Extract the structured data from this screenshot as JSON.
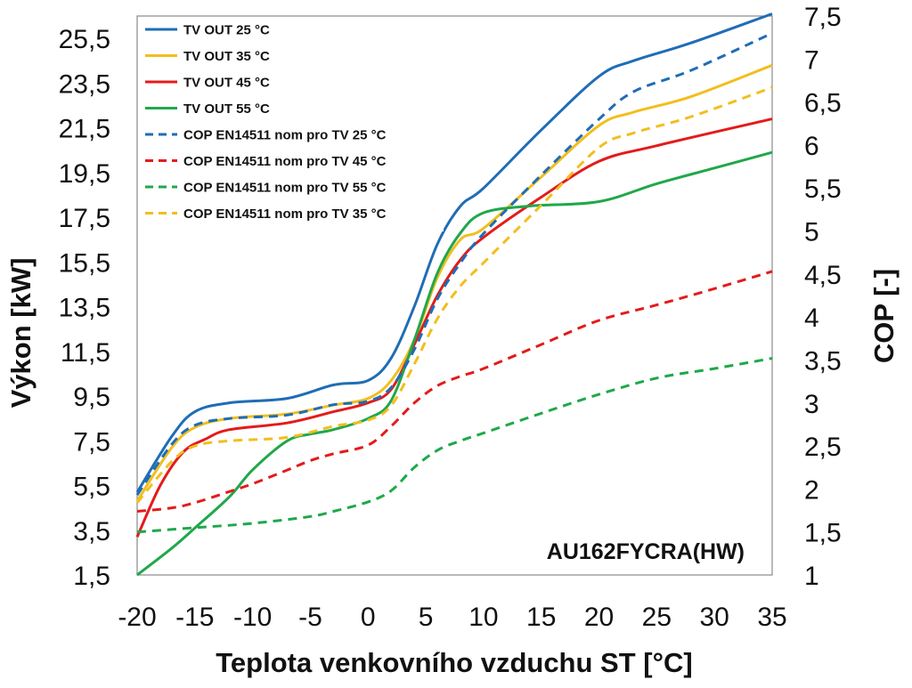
{
  "chart_data": {
    "type": "line",
    "xlabel": "Teplota venkovního vzduchu ST [°C]",
    "ylabel_left": "Výkon [kW]",
    "ylabel_right": "COP [-]",
    "annotation": "AU162FYCRA(HW)",
    "x_ticks": [
      "-20",
      "-15",
      "-10",
      "-5",
      "0",
      "5",
      "10",
      "15",
      "20",
      "25",
      "30",
      "35"
    ],
    "y_left_ticks": [
      "1,5",
      "3,5",
      "5,5",
      "7,5",
      "9,5",
      "11,5",
      "13,5",
      "15,5",
      "17,5",
      "19,5",
      "21,5",
      "23,5",
      "25,5"
    ],
    "y_right_ticks": [
      "1",
      "1,5",
      "2",
      "2,5",
      "3",
      "3,5",
      "4",
      "4,5",
      "5",
      "5,5",
      "6",
      "6,5",
      "7",
      "7,5"
    ],
    "xlim": [
      -20,
      35
    ],
    "ylim_left": [
      1.5,
      26.5
    ],
    "ylim_right": [
      1,
      7.5
    ],
    "grid": false,
    "legend_position": "top-left",
    "series": [
      {
        "name": "TV OUT 25 °C",
        "axis": "left",
        "style": "solid",
        "color": "#1f6db5",
        "x": [
          -20,
          -17,
          -15,
          -12,
          -7,
          -3,
          0,
          2,
          4,
          6,
          8,
          10,
          15,
          20,
          23,
          28,
          35
        ],
        "y": [
          5.2,
          7.7,
          8.8,
          9.2,
          9.4,
          10.0,
          10.2,
          11.2,
          13.5,
          16.3,
          18.0,
          18.8,
          21.4,
          23.8,
          24.5,
          25.3,
          26.6
        ]
      },
      {
        "name": "TV OUT 35 °C",
        "axis": "left",
        "style": "solid",
        "color": "#f2be1e",
        "x": [
          -20,
          -17,
          -15,
          -12,
          -7,
          -3,
          0,
          2,
          4,
          6,
          8,
          10,
          15,
          20,
          23,
          28,
          35
        ],
        "y": [
          4.8,
          7.2,
          8.1,
          8.5,
          8.7,
          9.1,
          9.4,
          10.2,
          12.0,
          14.8,
          16.5,
          17.0,
          19.3,
          21.6,
          22.2,
          22.9,
          24.3
        ]
      },
      {
        "name": "TV OUT 45 °C",
        "axis": "left",
        "style": "solid",
        "color": "#e31b1b",
        "x": [
          -20,
          -18,
          -16,
          -14,
          -12,
          -7,
          -3,
          0,
          2,
          4,
          6,
          8,
          10,
          15,
          20,
          25,
          35
        ],
        "y": [
          3.2,
          5.5,
          7.0,
          7.6,
          8.0,
          8.3,
          8.8,
          9.2,
          9.8,
          11.8,
          14.0,
          15.6,
          16.6,
          18.4,
          20.0,
          20.7,
          21.9
        ]
      },
      {
        "name": "TV OUT 55 °C",
        "axis": "left",
        "style": "solid",
        "color": "#1fa84a",
        "x": [
          -20,
          -17,
          -15,
          -12,
          -10,
          -7,
          -5,
          -3,
          0,
          2,
          4,
          6,
          8,
          10,
          14,
          20,
          25,
          30,
          35
        ],
        "y": [
          1.5,
          2.7,
          3.6,
          5.0,
          6.2,
          7.5,
          7.8,
          8.0,
          8.5,
          9.3,
          12.0,
          15.0,
          16.8,
          17.7,
          18.0,
          18.2,
          19.0,
          19.7,
          20.4
        ]
      },
      {
        "name": "COP EN14511 nom pro TV 25 °C",
        "axis": "right",
        "style": "dashed",
        "color": "#1f6db5",
        "x": [
          -20,
          -17,
          -15,
          -12,
          -7,
          -3,
          0,
          2,
          4,
          6,
          8,
          10,
          15,
          20,
          23,
          28,
          35
        ],
        "y": [
          1.93,
          2.52,
          2.74,
          2.82,
          2.86,
          2.98,
          3.02,
          3.18,
          3.62,
          4.21,
          4.63,
          4.97,
          5.65,
          6.3,
          6.62,
          6.87,
          7.3
        ]
      },
      {
        "name": "COP EN14511 nom pro TV 45 °C",
        "axis": "right",
        "style": "dashed",
        "color": "#e31b1b",
        "x": [
          -20,
          -17,
          -15,
          -12,
          -10,
          -7,
          -5,
          -3,
          0,
          2,
          4,
          6,
          8,
          10,
          15,
          20,
          25,
          30,
          35
        ],
        "y": [
          1.74,
          1.78,
          1.84,
          1.97,
          2.06,
          2.22,
          2.33,
          2.41,
          2.51,
          2.73,
          3.0,
          3.2,
          3.31,
          3.4,
          3.68,
          3.96,
          4.14,
          4.33,
          4.53
        ]
      },
      {
        "name": "COP EN14511 nom pro TV 55 °C",
        "axis": "right",
        "style": "dashed",
        "color": "#1fa84a",
        "x": [
          -20,
          -15,
          -10,
          -5,
          -3,
          0,
          2,
          4,
          6,
          8,
          10,
          15,
          20,
          25,
          30,
          35
        ],
        "y": [
          1.5,
          1.55,
          1.6,
          1.68,
          1.74,
          1.85,
          1.98,
          2.25,
          2.45,
          2.56,
          2.65,
          2.88,
          3.1,
          3.29,
          3.4,
          3.52
        ]
      },
      {
        "name": "COP EN14511 nom pro TV 35 °C",
        "axis": "right",
        "style": "dashed",
        "color": "#f2be1e",
        "x": [
          -20,
          -17,
          -15,
          -12,
          -7,
          -3,
          0,
          2,
          4,
          6,
          8,
          10,
          15,
          20,
          23,
          28,
          35
        ],
        "y": [
          1.84,
          2.32,
          2.5,
          2.56,
          2.6,
          2.73,
          2.8,
          2.97,
          3.45,
          3.98,
          4.36,
          4.63,
          5.3,
          5.97,
          6.14,
          6.33,
          6.67
        ]
      }
    ]
  }
}
